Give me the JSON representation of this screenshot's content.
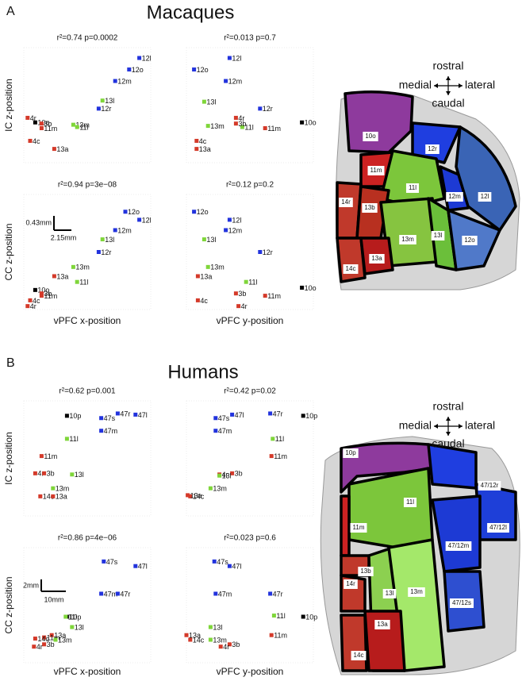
{
  "panels": [
    {
      "letter": "A",
      "title": "Macaques",
      "compass": {
        "up": "rostral",
        "left": "medial",
        "right": "lateral",
        "down": "caudal"
      },
      "regions": [
        "10o",
        "12r",
        "11m",
        "11l",
        "12m",
        "12l",
        "14r",
        "13b",
        "13m",
        "13l",
        "12o",
        "14c",
        "13a"
      ]
    },
    {
      "letter": "B",
      "title": "Humans",
      "compass": {
        "up": "rostral",
        "left": "medial",
        "right": "lateral",
        "down": "caudal"
      },
      "regions": [
        "10p",
        "11l",
        "47/12r",
        "47/12l",
        "11m",
        "47/12m",
        "13b",
        "14r",
        "13l",
        "13m",
        "47/12s",
        "13a",
        "14c"
      ]
    }
  ],
  "chart_data": [
    {
      "type": "scatter",
      "title": "r²=0.74 p=0.0002",
      "y_label": "IC z-position",
      "xlim": [
        0,
        100
      ],
      "ylim": [
        0,
        100
      ],
      "labels": [
        "12l",
        "12o",
        "12m",
        "13l",
        "12r",
        "13m",
        "11l",
        "4r",
        "10o",
        "3b",
        "11m",
        "4c",
        "13a"
      ],
      "x": [
        91,
        83,
        72,
        62,
        59,
        39,
        42,
        3,
        9,
        14,
        14,
        5,
        24
      ],
      "values": [
        91,
        81,
        71,
        54,
        47,
        33,
        31,
        39,
        35,
        34,
        30,
        19,
        12
      ],
      "colors": [
        "#2233dd",
        "#2233dd",
        "#2233dd",
        "#7fd63a",
        "#2233dd",
        "#7fd63a",
        "#7fd63a",
        "#d43a2a",
        "#000000",
        "#d43a2a",
        "#d43a2a",
        "#d43a2a",
        "#d43a2a"
      ]
    },
    {
      "type": "scatter",
      "title": "r²=0.013 p=0.7",
      "xlim": [
        0,
        100
      ],
      "ylim": [
        0,
        100
      ],
      "labels": [
        "12l",
        "12o",
        "12m",
        "13l",
        "12r",
        "13m",
        "11l",
        "4r",
        "10o",
        "3b",
        "11m",
        "4c",
        "13a"
      ],
      "x": [
        34,
        6,
        31,
        14,
        58,
        17,
        44,
        39,
        91,
        39,
        62,
        8,
        8
      ],
      "values": [
        91,
        81,
        71,
        53,
        47,
        32,
        31,
        39,
        35,
        34,
        30,
        19,
        12
      ],
      "colors": [
        "#2233dd",
        "#2233dd",
        "#2233dd",
        "#7fd63a",
        "#2233dd",
        "#7fd63a",
        "#7fd63a",
        "#d43a2a",
        "#000000",
        "#d43a2a",
        "#d43a2a",
        "#d43a2a",
        "#d43a2a"
      ]
    },
    {
      "type": "scatter",
      "title": "r²=0.94 p=3e−08",
      "y_label": "CC z-position",
      "x_label": "vPFC x-position",
      "xlim": [
        0,
        100
      ],
      "ylim": [
        0,
        100
      ],
      "scale_labels": [
        "0.43mm",
        "2.15mm"
      ],
      "labels": [
        "12o",
        "12l",
        "12m",
        "13l",
        "12r",
        "13m",
        "11l",
        "13a",
        "10o",
        "3b",
        "11m",
        "4c",
        "4r"
      ],
      "x": [
        80,
        91,
        72,
        62,
        59,
        39,
        42,
        24,
        9,
        14,
        14,
        5,
        3
      ],
      "values": [
        85,
        78,
        69,
        61,
        50,
        37,
        24,
        29,
        17,
        14,
        12,
        8,
        3
      ],
      "colors": [
        "#2233dd",
        "#2233dd",
        "#2233dd",
        "#7fd63a",
        "#2233dd",
        "#7fd63a",
        "#7fd63a",
        "#d43a2a",
        "#000000",
        "#d43a2a",
        "#d43a2a",
        "#d43a2a",
        "#d43a2a"
      ]
    },
    {
      "type": "scatter",
      "title": "r²=0.12 p=0.2",
      "x_label": "vPFC y-position",
      "xlim": [
        0,
        100
      ],
      "ylim": [
        0,
        100
      ],
      "labels": [
        "12o",
        "12l",
        "12m",
        "13l",
        "12r",
        "13m",
        "11l",
        "13a",
        "10o",
        "3b",
        "11m",
        "4c",
        "4r"
      ],
      "x": [
        6,
        34,
        31,
        14,
        58,
        17,
        47,
        9,
        91,
        39,
        62,
        9,
        41
      ],
      "values": [
        85,
        78,
        69,
        61,
        50,
        37,
        24,
        29,
        19,
        14,
        12,
        8,
        3
      ],
      "colors": [
        "#2233dd",
        "#2233dd",
        "#2233dd",
        "#7fd63a",
        "#2233dd",
        "#7fd63a",
        "#7fd63a",
        "#d43a2a",
        "#000000",
        "#d43a2a",
        "#d43a2a",
        "#d43a2a",
        "#d43a2a"
      ]
    },
    {
      "type": "scatter",
      "title": "r²=0.62 p=0.001",
      "y_label": "IC z-position",
      "xlim": [
        0,
        100
      ],
      "ylim": [
        0,
        100
      ],
      "labels": [
        "47r",
        "47l",
        "47s",
        "10p",
        "47m",
        "11l",
        "11m",
        "4r",
        "3b",
        "13l",
        "13m",
        "14c",
        "13a"
      ],
      "x": [
        74,
        88,
        61,
        34,
        61,
        34,
        14,
        9,
        16,
        38,
        23,
        13,
        23
      ],
      "values": [
        89,
        88,
        85,
        87,
        74,
        67,
        52,
        37,
        37,
        36,
        24,
        17,
        17
      ],
      "colors": [
        "#2233dd",
        "#2233dd",
        "#2233dd",
        "#000000",
        "#2233dd",
        "#7fd63a",
        "#d43a2a",
        "#d43a2a",
        "#d43a2a",
        "#7fd63a",
        "#7fd63a",
        "#d43a2a",
        "#d43a2a"
      ]
    },
    {
      "type": "scatter",
      "title": "r²=0.42 p=0.02",
      "xlim": [
        0,
        100
      ],
      "ylim": [
        0,
        100
      ],
      "labels": [
        "47r",
        "47l",
        "47s",
        "10p",
        "47m",
        "11l",
        "11m",
        "4r",
        "3b",
        "13l",
        "13m",
        "14c",
        "13a"
      ],
      "x": [
        66,
        36,
        23,
        92,
        23,
        68,
        67,
        26,
        36,
        26,
        19,
        3,
        1
      ],
      "values": [
        89,
        88,
        85,
        87,
        74,
        67,
        52,
        36,
        37,
        35,
        24,
        17,
        18
      ],
      "colors": [
        "#2233dd",
        "#2233dd",
        "#2233dd",
        "#000000",
        "#2233dd",
        "#7fd63a",
        "#d43a2a",
        "#d43a2a",
        "#d43a2a",
        "#7fd63a",
        "#7fd63a",
        "#d43a2a",
        "#d43a2a"
      ]
    },
    {
      "type": "scatter",
      "title": "r²=0.86 p=4e−06",
      "y_label": "CC z-position",
      "x_label": "vPFC x-position",
      "xlim": [
        0,
        100
      ],
      "ylim": [
        0,
        100
      ],
      "scale_labels": [
        "2mm",
        "10mm"
      ],
      "labels": [
        "47s",
        "47l",
        "47m",
        "47r",
        "10p",
        "11l",
        "13l",
        "13a",
        "11m",
        "13m",
        "14c",
        "3b",
        "4r"
      ],
      "x": [
        63,
        88,
        61,
        74,
        34,
        33,
        38,
        22,
        16,
        25,
        9,
        16,
        8
      ],
      "values": [
        88,
        84,
        60,
        60,
        40,
        40,
        31,
        24,
        22,
        20,
        21,
        16,
        14
      ],
      "colors": [
        "#2233dd",
        "#2233dd",
        "#2233dd",
        "#2233dd",
        "#000000",
        "#7fd63a",
        "#7fd63a",
        "#d43a2a",
        "#d43a2a",
        "#7fd63a",
        "#d43a2a",
        "#d43a2a",
        "#d43a2a"
      ]
    },
    {
      "type": "scatter",
      "title": "r²=0.023 p=0.6",
      "x_label": "vPFC y-position",
      "xlim": [
        0,
        100
      ],
      "ylim": [
        0,
        100
      ],
      "labels": [
        "47s",
        "47l",
        "47m",
        "47r",
        "10p",
        "11l",
        "13l",
        "13a",
        "11m",
        "13m",
        "14c",
        "3b",
        "4r"
      ],
      "x": [
        22,
        34,
        23,
        66,
        92,
        69,
        19,
        0,
        67,
        19,
        3,
        34,
        27
      ],
      "values": [
        88,
        84,
        60,
        60,
        40,
        41,
        31,
        24,
        24,
        20,
        20,
        16,
        14
      ],
      "colors": [
        "#2233dd",
        "#2233dd",
        "#2233dd",
        "#2233dd",
        "#000000",
        "#7fd63a",
        "#7fd63a",
        "#d43a2a",
        "#d43a2a",
        "#7fd63a",
        "#d43a2a",
        "#d43a2a",
        "#d43a2a"
      ]
    }
  ]
}
